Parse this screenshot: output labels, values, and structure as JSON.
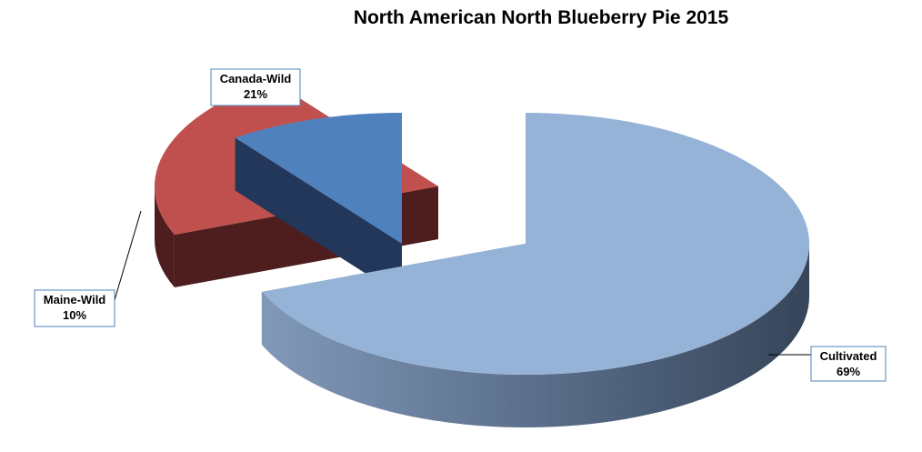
{
  "chart_data": {
    "type": "pie",
    "title": "North American North Blueberry Pie 2015",
    "slices": [
      {
        "label": "Cultivated",
        "value": 69,
        "display": "69%",
        "color": "#95B3D7",
        "side": "#3A4A5E"
      },
      {
        "label": "Canada-Wild",
        "value": 21,
        "display": "21%",
        "color": "#C0504D",
        "side": "#4E1D1D"
      },
      {
        "label": "Maine-Wild",
        "value": 10,
        "display": "10%",
        "color": "#4F81BD",
        "side": "#22375A"
      }
    ],
    "legend": "none",
    "style": "3D exploded pie"
  }
}
